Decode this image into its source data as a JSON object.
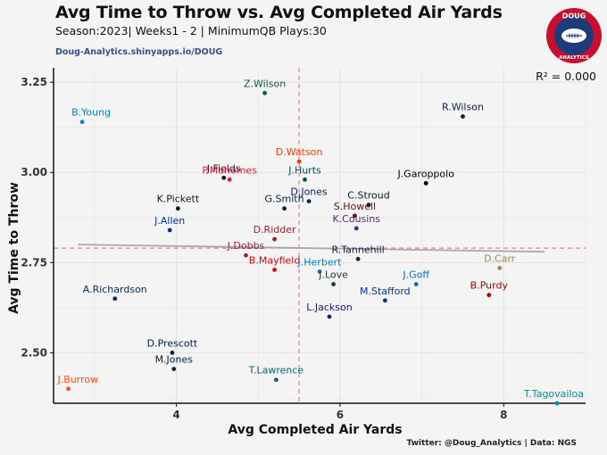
{
  "header": {
    "title": "Avg Time to Throw vs. Avg Completed Air Yards",
    "subtitle": "Season:2023| Weeks1 -  2 | MinimumQB Plays:30",
    "source_link": "Doug-Analytics.shinyapps.io/DOUG",
    "caption": "Twitter: @Doug_Analytics | Data: NGS"
  },
  "logo": {
    "top_text": "DOUG",
    "bottom_text": "ANALYTICS",
    "colors": {
      "ring": "#c8102e",
      "inner": "#1c3b7a",
      "ball": "#ffffff"
    }
  },
  "colors": {
    "background": "#f4f4f4",
    "grid": "#e3e3e3",
    "mean_line": "#f08080",
    "trend_line": "#a8a8b0"
  },
  "chart_data": {
    "type": "scatter",
    "title": "Avg Time to Throw vs. Avg Completed Air Yards",
    "xlabel": "Avg Completed Air Yards",
    "ylabel": "Avg Time to Throw",
    "xlim": [
      2.5,
      9.0
    ],
    "ylim": [
      2.36,
      3.29
    ],
    "x_ticks": [
      4,
      6,
      8
    ],
    "y_ticks": [
      2.5,
      2.75,
      3.0,
      3.25
    ],
    "y_tick_labels": [
      "2.50",
      "2.75",
      "3.00",
      "3.25"
    ],
    "mean_x": 5.5,
    "mean_y": 2.79,
    "trend_line": {
      "x": [
        2.8,
        8.5
      ],
      "y": [
        2.8,
        2.78
      ]
    },
    "r_squared_label": "R² = 0.000",
    "points": [
      {
        "name": "Z.Wilson",
        "x": 5.08,
        "y": 3.22,
        "color": "#125740"
      },
      {
        "name": "B.Young",
        "x": 2.85,
        "y": 3.14,
        "color": "#0085ca"
      },
      {
        "name": "R.Wilson",
        "x": 7.5,
        "y": 3.155,
        "color": "#0b1f3f"
      },
      {
        "name": "D.Watson",
        "x": 5.5,
        "y": 3.03,
        "color": "#ff3c00"
      },
      {
        "name": "J.Fields",
        "x": 4.58,
        "y": 2.985,
        "color": "#0b162a"
      },
      {
        "name": "P.Mahomes",
        "x": 4.65,
        "y": 2.98,
        "color": "#e31837"
      },
      {
        "name": "J.Hurts",
        "x": 5.57,
        "y": 2.98,
        "color": "#004c54"
      },
      {
        "name": "J.Garoppolo",
        "x": 7.05,
        "y": 2.97,
        "color": "#000000"
      },
      {
        "name": "D.Jones",
        "x": 5.62,
        "y": 2.92,
        "color": "#0b2265"
      },
      {
        "name": "C.Stroud",
        "x": 6.35,
        "y": 2.91,
        "color": "#03202f"
      },
      {
        "name": "K.Pickett",
        "x": 4.02,
        "y": 2.9,
        "color": "#101820"
      },
      {
        "name": "G.Smith",
        "x": 5.32,
        "y": 2.9,
        "color": "#002244"
      },
      {
        "name": "S.Howell",
        "x": 6.18,
        "y": 2.88,
        "color": "#5a1414"
      },
      {
        "name": "K.Cousins",
        "x": 6.2,
        "y": 2.845,
        "color": "#4f2683"
      },
      {
        "name": "J.Allen",
        "x": 3.92,
        "y": 2.84,
        "color": "#00338d"
      },
      {
        "name": "D.Ridder",
        "x": 5.2,
        "y": 2.815,
        "color": "#a71930"
      },
      {
        "name": "J.Dobbs",
        "x": 4.85,
        "y": 2.77,
        "color": "#97233f"
      },
      {
        "name": "R.Tannehill",
        "x": 6.22,
        "y": 2.76,
        "color": "#0c2340"
      },
      {
        "name": "D.Carr",
        "x": 7.95,
        "y": 2.735,
        "color": "#9f8958"
      },
      {
        "name": "B.Mayfield",
        "x": 5.2,
        "y": 2.73,
        "color": "#d50a0a"
      },
      {
        "name": "J.Herbert",
        "x": 5.75,
        "y": 2.725,
        "color": "#0080c6"
      },
      {
        "name": "J.Goff",
        "x": 6.93,
        "y": 2.69,
        "color": "#0076b6"
      },
      {
        "name": "J.Love",
        "x": 5.92,
        "y": 2.69,
        "color": "#203731"
      },
      {
        "name": "B.Purdy",
        "x": 7.82,
        "y": 2.66,
        "color": "#aa0000"
      },
      {
        "name": "A.Richardson",
        "x": 3.25,
        "y": 2.65,
        "color": "#002c5f"
      },
      {
        "name": "M.Stafford",
        "x": 6.55,
        "y": 2.645,
        "color": "#003594"
      },
      {
        "name": "L.Jackson",
        "x": 5.87,
        "y": 2.6,
        "color": "#241773"
      },
      {
        "name": "D.Prescott",
        "x": 3.95,
        "y": 2.5,
        "color": "#041e42"
      },
      {
        "name": "M.Jones",
        "x": 3.97,
        "y": 2.455,
        "color": "#002244"
      },
      {
        "name": "T.Lawrence",
        "x": 5.22,
        "y": 2.425,
        "color": "#006778"
      },
      {
        "name": "J.Burrow",
        "x": 2.68,
        "y": 2.4,
        "color": "#fb4f14"
      },
      {
        "name": "T.Tagovailoa",
        "x": 8.65,
        "y": 2.36,
        "color": "#008e97"
      }
    ]
  }
}
